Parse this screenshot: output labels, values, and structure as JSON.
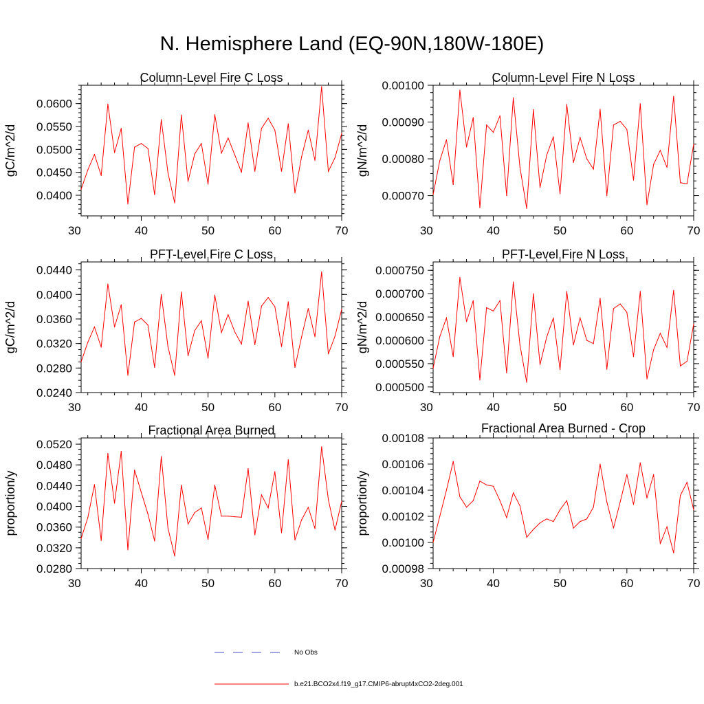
{
  "title": "N. Hemisphere Land (EQ-90N,180W-180E)",
  "colors": {
    "series": "#ff0000",
    "obs": "#4b4bc8",
    "axis": "#000000"
  },
  "legend": {
    "obs_label": "No Obs",
    "model_label": "b.e21.BCO2x4.f19_g17.CMIP6-abrupt4xCO2-2deg.001"
  },
  "chart_data": [
    {
      "type": "line",
      "title": "Column-Level Fire C Loss",
      "ylabel": "gC/m^2/d",
      "xlabel": "",
      "xlim": [
        31,
        70
      ],
      "ylim": [
        0.0355,
        0.064
      ],
      "xticks": [
        30,
        40,
        50,
        60,
        70
      ],
      "yticks": [
        0.04,
        0.045,
        0.05,
        0.055,
        0.06
      ],
      "ytick_labels": [
        "0.0400",
        "0.0450",
        "0.0500",
        "0.0550",
        "0.0600"
      ],
      "yminor": 0.001,
      "x": [
        31,
        32,
        33,
        34,
        35,
        36,
        37,
        38,
        39,
        40,
        41,
        42,
        43,
        44,
        45,
        46,
        47,
        48,
        49,
        50,
        51,
        52,
        53,
        54,
        55,
        56,
        57,
        58,
        59,
        60,
        61,
        62,
        63,
        64,
        65,
        66,
        67,
        68,
        69,
        70
      ],
      "values": [
        0.0413,
        0.0455,
        0.0489,
        0.0443,
        0.0599,
        0.0493,
        0.0546,
        0.0381,
        0.0505,
        0.0513,
        0.0502,
        0.0401,
        0.0565,
        0.0449,
        0.0383,
        0.0575,
        0.043,
        0.049,
        0.0513,
        0.0424,
        0.0576,
        0.0492,
        0.0525,
        0.0488,
        0.045,
        0.0558,
        0.0452,
        0.0546,
        0.0568,
        0.0542,
        0.0452,
        0.0556,
        0.0405,
        0.0484,
        0.0542,
        0.0476,
        0.0637,
        0.0452,
        0.0482,
        0.0535
      ]
    },
    {
      "type": "line",
      "title": "Column-Level Fire N Loss",
      "ylabel": "gN/m^2/d",
      "xlabel": "",
      "xlim": [
        31,
        70
      ],
      "ylim": [
        0.000645,
        0.001
      ],
      "xticks": [
        30,
        40,
        50,
        60,
        70
      ],
      "yticks": [
        0.0007,
        0.0008,
        0.0009,
        0.001
      ],
      "ytick_labels": [
        "0.00070",
        "0.00080",
        "0.00090",
        "0.00100"
      ],
      "yminor": 2e-05,
      "x": [
        31,
        32,
        33,
        34,
        35,
        36,
        37,
        38,
        39,
        40,
        41,
        42,
        43,
        44,
        45,
        46,
        47,
        48,
        49,
        50,
        51,
        52,
        53,
        54,
        55,
        56,
        57,
        58,
        59,
        60,
        61,
        62,
        63,
        64,
        65,
        66,
        67,
        68,
        69,
        70
      ],
      "values": [
        0.000703,
        0.000795,
        0.000852,
        0.00073,
        0.000987,
        0.000832,
        0.000912,
        0.000667,
        0.000892,
        0.000872,
        0.000917,
        0.0007,
        0.000966,
        0.000777,
        0.000665,
        0.000934,
        0.000722,
        0.00081,
        0.00086,
        0.000705,
        0.000948,
        0.00079,
        0.000858,
        0.0008,
        0.000772,
        0.000935,
        0.0007,
        0.000892,
        0.000902,
        0.00088,
        0.000742,
        0.00095,
        0.000675,
        0.000785,
        0.000823,
        0.000777,
        0.00097,
        0.000735,
        0.000732,
        0.00084
      ]
    },
    {
      "type": "line",
      "title": "PFT-Level Fire C Loss",
      "ylabel": "gC/m^2/d",
      "xlabel": "",
      "xlim": [
        31,
        70
      ],
      "ylim": [
        0.024,
        0.0453
      ],
      "xticks": [
        30,
        40,
        50,
        60,
        70
      ],
      "yticks": [
        0.024,
        0.028,
        0.032,
        0.036,
        0.04,
        0.044
      ],
      "ytick_labels": [
        "0.0240",
        "0.0280",
        "0.0320",
        "0.0360",
        "0.0400",
        "0.0440"
      ],
      "yminor": 0.001,
      "x": [
        31,
        32,
        33,
        34,
        35,
        36,
        37,
        38,
        39,
        40,
        41,
        42,
        43,
        44,
        45,
        46,
        47,
        48,
        49,
        50,
        51,
        52,
        53,
        54,
        55,
        56,
        57,
        58,
        59,
        60,
        61,
        62,
        63,
        64,
        65,
        66,
        67,
        68,
        69,
        70
      ],
      "values": [
        0.029,
        0.0322,
        0.0347,
        0.0314,
        0.0417,
        0.0347,
        0.0383,
        0.0268,
        0.0355,
        0.0361,
        0.035,
        0.0281,
        0.04,
        0.0315,
        0.0268,
        0.0404,
        0.03,
        0.0341,
        0.0357,
        0.0296,
        0.0399,
        0.0338,
        0.0367,
        0.0339,
        0.0319,
        0.0389,
        0.0318,
        0.0381,
        0.0395,
        0.038,
        0.0315,
        0.0388,
        0.0281,
        0.0331,
        0.0377,
        0.0331,
        0.0437,
        0.0303,
        0.0332,
        0.0376
      ]
    },
    {
      "type": "line",
      "title": "PFT-Level Fire N Loss",
      "ylabel": "gN/m^2/d",
      "xlabel": "",
      "xlim": [
        31,
        70
      ],
      "ylim": [
        0.000488,
        0.000768
      ],
      "xticks": [
        30,
        40,
        50,
        60,
        70
      ],
      "yticks": [
        0.0005,
        0.00055,
        0.0006,
        0.00065,
        0.0007,
        0.00075
      ],
      "ytick_labels": [
        "0.000500",
        "0.000550",
        "0.000600",
        "0.000650",
        "0.000700",
        "0.000750"
      ],
      "yminor": 1e-05,
      "x": [
        31,
        32,
        33,
        34,
        35,
        36,
        37,
        38,
        39,
        40,
        41,
        42,
        43,
        44,
        45,
        46,
        47,
        48,
        49,
        50,
        51,
        52,
        53,
        54,
        55,
        56,
        57,
        58,
        59,
        60,
        61,
        62,
        63,
        64,
        65,
        66,
        67,
        68,
        69,
        70
      ],
      "values": [
        0.00054,
        0.000608,
        0.000648,
        0.000565,
        0.000735,
        0.00064,
        0.000685,
        0.000515,
        0.00067,
        0.000663,
        0.000685,
        0.00053,
        0.000725,
        0.00059,
        0.00051,
        0.0007,
        0.000548,
        0.000607,
        0.000648,
        0.000537,
        0.000705,
        0.00059,
        0.000648,
        0.0006,
        0.000593,
        0.00069,
        0.000538,
        0.000668,
        0.000678,
        0.00066,
        0.000565,
        0.000705,
        0.000517,
        0.00058,
        0.000615,
        0.000585,
        0.000707,
        0.000545,
        0.000555,
        0.000635
      ]
    },
    {
      "type": "line",
      "title": "Fractional Area Burned",
      "ylabel": "proportion/y",
      "xlabel": "",
      "xlim": [
        31,
        70
      ],
      "ylim": [
        0.028,
        0.0532
      ],
      "xticks": [
        30,
        40,
        50,
        60,
        70
      ],
      "yticks": [
        0.028,
        0.032,
        0.036,
        0.04,
        0.044,
        0.048,
        0.052
      ],
      "ytick_labels": [
        "0.0280",
        "0.0320",
        "0.0360",
        "0.0400",
        "0.0440",
        "0.0480",
        "0.0520"
      ],
      "yminor": 0.001,
      "x": [
        31,
        32,
        33,
        34,
        35,
        36,
        37,
        38,
        39,
        40,
        41,
        42,
        43,
        44,
        45,
        46,
        47,
        48,
        49,
        50,
        51,
        52,
        53,
        54,
        55,
        56,
        57,
        58,
        59,
        60,
        61,
        62,
        63,
        64,
        65,
        66,
        67,
        68,
        69,
        70
      ],
      "values": [
        0.0338,
        0.0378,
        0.0442,
        0.0334,
        0.0502,
        0.0406,
        0.0506,
        0.0316,
        0.047,
        0.0427,
        0.0385,
        0.0333,
        0.0496,
        0.0358,
        0.0304,
        0.0441,
        0.0366,
        0.0388,
        0.0397,
        0.0336,
        0.0441,
        0.0381,
        0.0381,
        0.038,
        0.0379,
        0.0473,
        0.0345,
        0.0422,
        0.0397,
        0.0467,
        0.0349,
        0.049,
        0.0335,
        0.0374,
        0.0398,
        0.0357,
        0.0515,
        0.0413,
        0.0354,
        0.041
      ]
    },
    {
      "type": "line",
      "title": "Fractional Area Burned - Crop",
      "ylabel": "proportion/y",
      "xlabel": "",
      "xlim": [
        31,
        70
      ],
      "ylim": [
        0.00098,
        0.00108
      ],
      "xticks": [
        30,
        40,
        50,
        60,
        70
      ],
      "yticks": [
        0.00098,
        0.001,
        0.00102,
        0.00104,
        0.00106,
        0.00108
      ],
      "ytick_labels": [
        "0.00098",
        "0.00100",
        "0.00102",
        "0.00104",
        "0.00106",
        "0.00108"
      ],
      "yminor": 4e-06,
      "x": [
        31,
        32,
        33,
        34,
        35,
        36,
        37,
        38,
        39,
        40,
        41,
        42,
        43,
        44,
        45,
        46,
        47,
        48,
        49,
        50,
        51,
        52,
        53,
        54,
        55,
        56,
        57,
        58,
        59,
        60,
        61,
        62,
        63,
        64,
        65,
        66,
        67,
        68,
        69,
        70
      ],
      "values": [
        0.001,
        0.00102,
        0.00104,
        0.001062,
        0.001035,
        0.001027,
        0.001032,
        0.001047,
        0.001044,
        0.001043,
        0.001032,
        0.001019,
        0.001038,
        0.001028,
        0.001004,
        0.00101,
        0.001015,
        0.001018,
        0.001016,
        0.001025,
        0.001032,
        0.001011,
        0.001016,
        0.001018,
        0.001027,
        0.00106,
        0.001031,
        0.001011,
        0.001031,
        0.001052,
        0.001029,
        0.001061,
        0.001034,
        0.001052,
        0.000999,
        0.001012,
        0.000992,
        0.001036,
        0.001046,
        0.001025
      ]
    }
  ]
}
